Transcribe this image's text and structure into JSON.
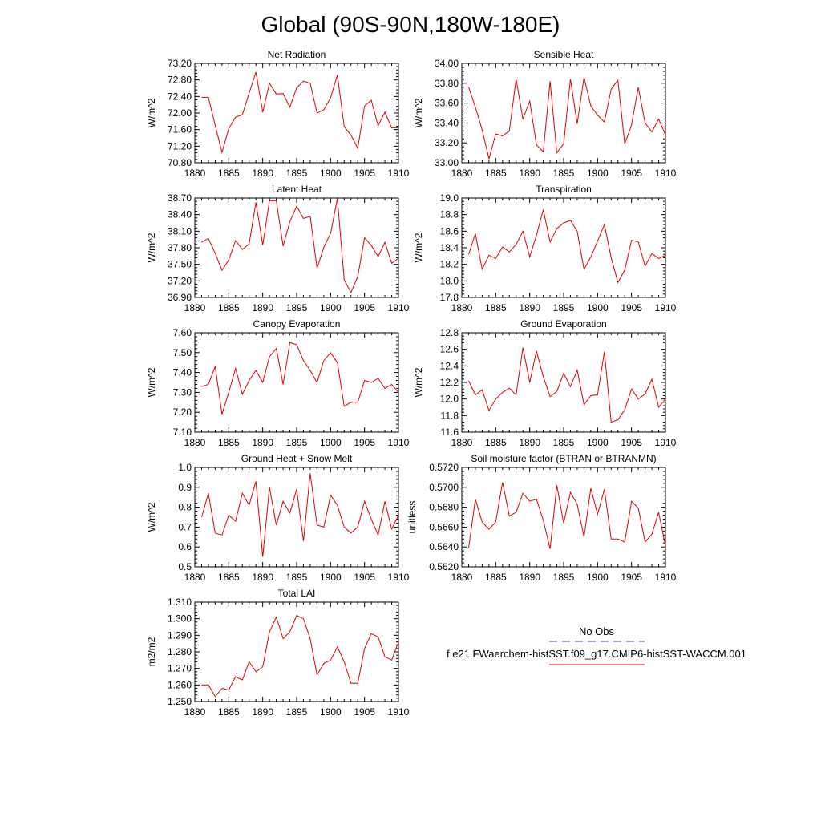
{
  "figure": {
    "title": "Global (90S-90N,180W-180E)",
    "legend": {
      "obs_label": "No Obs",
      "obs_color": "#3b3bd6",
      "model_label": "f.e21.FWaerchem-histSST.f09_g17.CMIP6-histSST-WACCM.001",
      "model_color": "#e00000"
    }
  },
  "chart_data": [
    {
      "type": "line",
      "title": "Net Radiation",
      "ylabel": "W/m^2",
      "xlim": [
        1880,
        1910
      ],
      "xticks": [
        1880,
        1885,
        1890,
        1895,
        1900,
        1905,
        1910
      ],
      "ylim": [
        70.8,
        73.2
      ],
      "yticks": [
        70.8,
        71.2,
        71.6,
        72.0,
        72.4,
        72.8,
        73.2
      ],
      "ytick_labels": [
        "70.80",
        "71.20",
        "71.60",
        "72.00",
        "72.40",
        "72.80",
        "73.20"
      ],
      "x": [
        1881,
        1882,
        1883,
        1884,
        1885,
        1886,
        1887,
        1888,
        1889,
        1890,
        1891,
        1892,
        1893,
        1894,
        1895,
        1896,
        1897,
        1898,
        1899,
        1900,
        1901,
        1902,
        1903,
        1904,
        1905,
        1906,
        1907,
        1908,
        1909,
        1910
      ],
      "series": [
        {
          "values": [
            72.38,
            72.38,
            71.7,
            71.05,
            71.62,
            71.9,
            71.96,
            72.48,
            72.99,
            72.02,
            72.72,
            72.46,
            72.47,
            72.14,
            72.61,
            72.77,
            72.72,
            72.0,
            72.08,
            72.37,
            72.92,
            71.67,
            71.47,
            71.15,
            72.17,
            72.31,
            71.69,
            72.02,
            71.64,
            71.64
          ]
        }
      ]
    },
    {
      "type": "line",
      "title": "Sensible Heat",
      "ylabel": "W/m^2",
      "xlim": [
        1880,
        1910
      ],
      "xticks": [
        1880,
        1885,
        1890,
        1895,
        1900,
        1905,
        1910
      ],
      "ylim": [
        33.0,
        34.0
      ],
      "yticks": [
        33.0,
        33.2,
        33.4,
        33.6,
        33.8,
        34.0
      ],
      "ytick_labels": [
        "33.00",
        "33.20",
        "33.40",
        "33.60",
        "33.80",
        "34.00"
      ],
      "x": [
        1881,
        1882,
        1883,
        1884,
        1885,
        1886,
        1887,
        1888,
        1889,
        1890,
        1891,
        1892,
        1893,
        1894,
        1895,
        1896,
        1897,
        1898,
        1899,
        1900,
        1901,
        1902,
        1903,
        1904,
        1905,
        1906,
        1907,
        1908,
        1909,
        1910
      ],
      "series": [
        {
          "values": [
            33.76,
            33.56,
            33.33,
            33.04,
            33.29,
            33.27,
            33.32,
            33.84,
            33.44,
            33.62,
            33.18,
            33.11,
            33.82,
            33.1,
            33.19,
            33.84,
            33.39,
            33.86,
            33.57,
            33.48,
            33.41,
            33.74,
            33.83,
            33.19,
            33.38,
            33.76,
            33.4,
            33.31,
            33.44,
            33.28
          ]
        }
      ]
    },
    {
      "type": "line",
      "title": "Latent Heat",
      "ylabel": "W/m^2",
      "xlim": [
        1880,
        1910
      ],
      "xticks": [
        1880,
        1885,
        1890,
        1895,
        1900,
        1905,
        1910
      ],
      "ylim": [
        36.9,
        38.7
      ],
      "yticks": [
        36.9,
        37.2,
        37.5,
        37.8,
        38.1,
        38.4,
        38.7
      ],
      "ytick_labels": [
        "36.90",
        "37.20",
        "37.50",
        "37.80",
        "38.10",
        "38.40",
        "38.70"
      ],
      "x": [
        1881,
        1882,
        1883,
        1884,
        1885,
        1886,
        1887,
        1888,
        1889,
        1890,
        1891,
        1892,
        1893,
        1894,
        1895,
        1896,
        1897,
        1898,
        1899,
        1900,
        1901,
        1902,
        1903,
        1904,
        1905,
        1906,
        1907,
        1908,
        1909,
        1910
      ],
      "series": [
        {
          "values": [
            37.9,
            37.97,
            37.7,
            37.39,
            37.58,
            37.93,
            37.77,
            37.87,
            38.62,
            37.85,
            38.65,
            38.65,
            37.83,
            38.27,
            38.55,
            38.33,
            38.37,
            37.43,
            37.81,
            38.06,
            38.69,
            37.22,
            36.99,
            37.28,
            37.98,
            37.84,
            37.64,
            37.9,
            37.52,
            37.61
          ]
        }
      ]
    },
    {
      "type": "line",
      "title": "Transpiration",
      "ylabel": "W/m^2",
      "xlim": [
        1880,
        1910
      ],
      "xticks": [
        1880,
        1885,
        1890,
        1895,
        1900,
        1905,
        1910
      ],
      "ylim": [
        17.8,
        19.0
      ],
      "yticks": [
        17.8,
        18.0,
        18.2,
        18.4,
        18.6,
        18.8,
        19.0
      ],
      "ytick_labels": [
        "17.8",
        "18.0",
        "18.2",
        "18.4",
        "18.6",
        "18.8",
        "19.0"
      ],
      "x": [
        1881,
        1882,
        1883,
        1884,
        1885,
        1886,
        1887,
        1888,
        1889,
        1890,
        1891,
        1892,
        1893,
        1894,
        1895,
        1896,
        1897,
        1898,
        1899,
        1900,
        1901,
        1902,
        1903,
        1904,
        1905,
        1906,
        1907,
        1908,
        1909,
        1910
      ],
      "series": [
        {
          "values": [
            18.32,
            18.57,
            18.14,
            18.31,
            18.27,
            18.41,
            18.35,
            18.44,
            18.6,
            18.29,
            18.55,
            18.86,
            18.47,
            18.63,
            18.7,
            18.73,
            18.6,
            18.14,
            18.29,
            18.48,
            18.68,
            18.28,
            17.98,
            18.13,
            18.49,
            18.47,
            18.18,
            18.33,
            18.27,
            18.31
          ]
        }
      ]
    },
    {
      "type": "line",
      "title": "Canopy Evaporation",
      "ylabel": "W/m^2",
      "xlim": [
        1880,
        1910
      ],
      "xticks": [
        1880,
        1885,
        1890,
        1895,
        1900,
        1905,
        1910
      ],
      "ylim": [
        7.1,
        7.6
      ],
      "yticks": [
        7.1,
        7.2,
        7.3,
        7.4,
        7.5,
        7.6
      ],
      "ytick_labels": [
        "7.10",
        "7.20",
        "7.30",
        "7.40",
        "7.50",
        "7.60"
      ],
      "x": [
        1881,
        1882,
        1883,
        1884,
        1885,
        1886,
        1887,
        1888,
        1889,
        1890,
        1891,
        1892,
        1893,
        1894,
        1895,
        1896,
        1897,
        1898,
        1899,
        1900,
        1901,
        1902,
        1903,
        1904,
        1905,
        1906,
        1907,
        1908,
        1909,
        1910
      ],
      "series": [
        {
          "values": [
            7.33,
            7.34,
            7.43,
            7.19,
            7.3,
            7.42,
            7.29,
            7.36,
            7.41,
            7.35,
            7.48,
            7.52,
            7.34,
            7.55,
            7.54,
            7.46,
            7.41,
            7.35,
            7.46,
            7.5,
            7.45,
            7.23,
            7.25,
            7.25,
            7.36,
            7.35,
            7.37,
            7.32,
            7.34,
            7.3
          ]
        }
      ]
    },
    {
      "type": "line",
      "title": "Ground Evaporation",
      "ylabel": "W/m^2",
      "xlim": [
        1880,
        1910
      ],
      "xticks": [
        1880,
        1885,
        1890,
        1895,
        1900,
        1905,
        1910
      ],
      "ylim": [
        11.6,
        12.8
      ],
      "yticks": [
        11.6,
        11.8,
        12.0,
        12.2,
        12.4,
        12.6,
        12.8
      ],
      "ytick_labels": [
        "11.6",
        "11.8",
        "12.0",
        "12.2",
        "12.4",
        "12.6",
        "12.8"
      ],
      "x": [
        1881,
        1882,
        1883,
        1884,
        1885,
        1886,
        1887,
        1888,
        1889,
        1890,
        1891,
        1892,
        1893,
        1894,
        1895,
        1896,
        1897,
        1898,
        1899,
        1900,
        1901,
        1902,
        1903,
        1904,
        1905,
        1906,
        1907,
        1908,
        1909,
        1910
      ],
      "series": [
        {
          "values": [
            12.22,
            12.05,
            12.11,
            11.86,
            12.0,
            12.08,
            12.13,
            12.05,
            12.62,
            12.2,
            12.58,
            12.27,
            12.03,
            12.09,
            12.31,
            12.15,
            12.35,
            11.93,
            12.04,
            12.05,
            12.57,
            11.72,
            11.75,
            11.87,
            12.12,
            12.0,
            12.06,
            12.24,
            11.9,
            12.0
          ]
        }
      ]
    },
    {
      "type": "line",
      "title": "Ground Heat + Snow Melt",
      "ylabel": "W/m^2",
      "xlim": [
        1880,
        1910
      ],
      "xticks": [
        1880,
        1885,
        1890,
        1895,
        1900,
        1905,
        1910
      ],
      "ylim": [
        0.5,
        1.0
      ],
      "yticks": [
        0.5,
        0.6,
        0.7,
        0.8,
        0.9,
        1.0
      ],
      "ytick_labels": [
        "0.5",
        "0.6",
        "0.7",
        "0.8",
        "0.9",
        "1.0"
      ],
      "x": [
        1881,
        1882,
        1883,
        1884,
        1885,
        1886,
        1887,
        1888,
        1889,
        1890,
        1891,
        1892,
        1893,
        1894,
        1895,
        1896,
        1897,
        1898,
        1899,
        1900,
        1901,
        1902,
        1903,
        1904,
        1905,
        1906,
        1907,
        1908,
        1909,
        1910
      ],
      "series": [
        {
          "values": [
            0.75,
            0.87,
            0.67,
            0.66,
            0.76,
            0.73,
            0.87,
            0.81,
            0.93,
            0.55,
            0.9,
            0.71,
            0.83,
            0.77,
            0.89,
            0.63,
            0.97,
            0.71,
            0.7,
            0.86,
            0.81,
            0.7,
            0.67,
            0.7,
            0.83,
            0.74,
            0.66,
            0.83,
            0.69,
            0.76
          ]
        }
      ]
    },
    {
      "type": "line",
      "title": "Soil moisture factor (BTRAN or BTRANMN)",
      "ylabel": "unitless",
      "xlim": [
        1880,
        1910
      ],
      "xticks": [
        1880,
        1885,
        1890,
        1895,
        1900,
        1905,
        1910
      ],
      "ylim": [
        0.562,
        0.572
      ],
      "yticks": [
        0.562,
        0.564,
        0.566,
        0.568,
        0.57,
        0.572
      ],
      "ytick_labels": [
        "0.5620",
        "0.5640",
        "0.5660",
        "0.5680",
        "0.5700",
        "0.5720"
      ],
      "x": [
        1881,
        1882,
        1883,
        1884,
        1885,
        1886,
        1887,
        1888,
        1889,
        1890,
        1891,
        1892,
        1893,
        1894,
        1895,
        1896,
        1897,
        1898,
        1899,
        1900,
        1901,
        1902,
        1903,
        1904,
        1905,
        1906,
        1907,
        1908,
        1909,
        1910
      ],
      "series": [
        {
          "values": [
            0.5639,
            0.5688,
            0.5665,
            0.5658,
            0.5665,
            0.5705,
            0.5671,
            0.5675,
            0.5694,
            0.5686,
            0.5688,
            0.5667,
            0.5638,
            0.5702,
            0.5664,
            0.5695,
            0.5683,
            0.565,
            0.5699,
            0.5673,
            0.5698,
            0.5648,
            0.5648,
            0.5645,
            0.5686,
            0.5679,
            0.5645,
            0.5653,
            0.5675,
            0.5641
          ]
        }
      ]
    },
    {
      "type": "line",
      "title": "Total LAI",
      "ylabel": "m2/m2",
      "xlim": [
        1880,
        1910
      ],
      "xticks": [
        1880,
        1885,
        1890,
        1895,
        1900,
        1905,
        1910
      ],
      "ylim": [
        1.25,
        1.31
      ],
      "yticks": [
        1.25,
        1.26,
        1.27,
        1.28,
        1.29,
        1.3,
        1.31
      ],
      "ytick_labels": [
        "1.250",
        "1.260",
        "1.270",
        "1.280",
        "1.290",
        "1.300",
        "1.310"
      ],
      "x": [
        1881,
        1882,
        1883,
        1884,
        1885,
        1886,
        1887,
        1888,
        1889,
        1890,
        1891,
        1892,
        1893,
        1894,
        1895,
        1896,
        1897,
        1898,
        1899,
        1900,
        1901,
        1902,
        1903,
        1904,
        1905,
        1906,
        1907,
        1908,
        1909,
        1910
      ],
      "series": [
        {
          "values": [
            1.26,
            1.26,
            1.253,
            1.258,
            1.257,
            1.265,
            1.263,
            1.274,
            1.268,
            1.271,
            1.292,
            1.301,
            1.288,
            1.292,
            1.302,
            1.3,
            1.288,
            1.266,
            1.273,
            1.275,
            1.283,
            1.274,
            1.261,
            1.261,
            1.282,
            1.291,
            1.289,
            1.277,
            1.275,
            1.286
          ]
        }
      ]
    }
  ]
}
